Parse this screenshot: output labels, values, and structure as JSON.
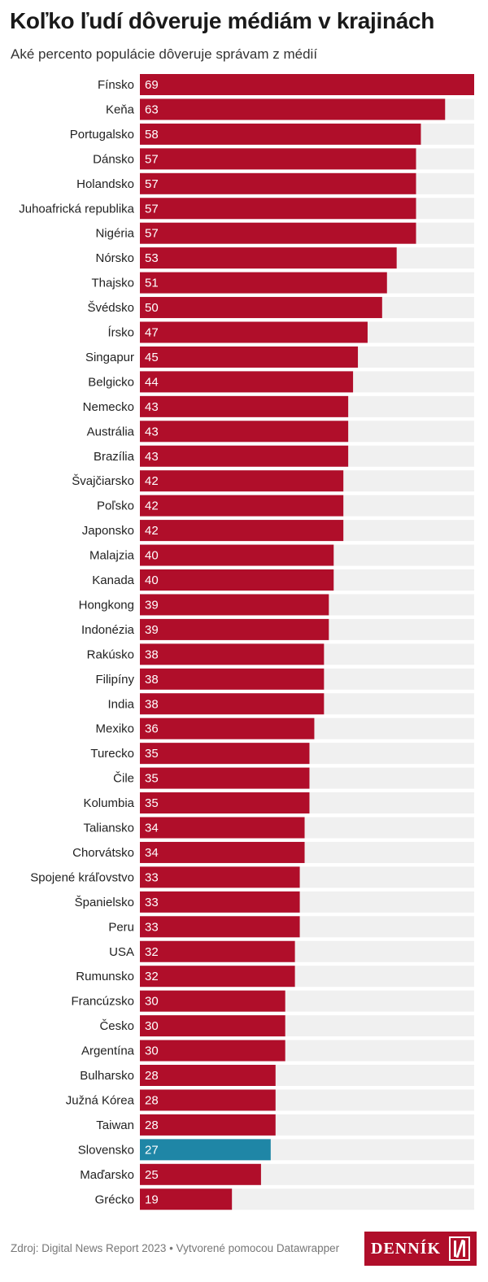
{
  "title": "Koľko ľudí dôveruje médiám v krajinách",
  "subtitle": "Aké percento populácie dôveruje správam z médií",
  "footer": "Zdroj: Digital News Report 2023 • Vytvorené pomocou Datawrapper",
  "logo_text": "DENNÍK",
  "logo_icon": "n-logo-icon",
  "colors": {
    "bar": "#b00e2a",
    "highlight": "#1f86a6",
    "track": "#f0f0f0"
  },
  "chart_data": {
    "type": "bar",
    "orientation": "horizontal",
    "xlim": [
      0,
      69
    ],
    "highlight": "Slovensko",
    "categories": [
      "Fínsko",
      "Keňa",
      "Portugalsko",
      "Dánsko",
      "Holandsko",
      "Juhoafrická republika",
      "Nigéria",
      "Nórsko",
      "Thajsko",
      "Švédsko",
      "Írsko",
      "Singapur",
      "Belgicko",
      "Nemecko",
      "Austrália",
      "Brazília",
      "Švajčiarsko",
      "Poľsko",
      "Japonsko",
      "Malajzia",
      "Kanada",
      "Hongkong",
      "Indonézia",
      "Rakúsko",
      "Filipíny",
      "India",
      "Mexiko",
      "Turecko",
      "Čile",
      "Kolumbia",
      "Taliansko",
      "Chorvátsko",
      "Spojené kráľovstvo",
      "Španielsko",
      "Peru",
      "USA",
      "Rumunsko",
      "Francúzsko",
      "Česko",
      "Argentína",
      "Bulharsko",
      "Južná Kórea",
      "Taiwan",
      "Slovensko",
      "Maďarsko",
      "Grécko"
    ],
    "values": [
      69,
      63,
      58,
      57,
      57,
      57,
      57,
      53,
      51,
      50,
      47,
      45,
      44,
      43,
      43,
      43,
      42,
      42,
      42,
      40,
      40,
      39,
      39,
      38,
      38,
      38,
      36,
      35,
      35,
      35,
      34,
      34,
      33,
      33,
      33,
      32,
      32,
      30,
      30,
      30,
      28,
      28,
      28,
      27,
      25,
      19
    ]
  }
}
